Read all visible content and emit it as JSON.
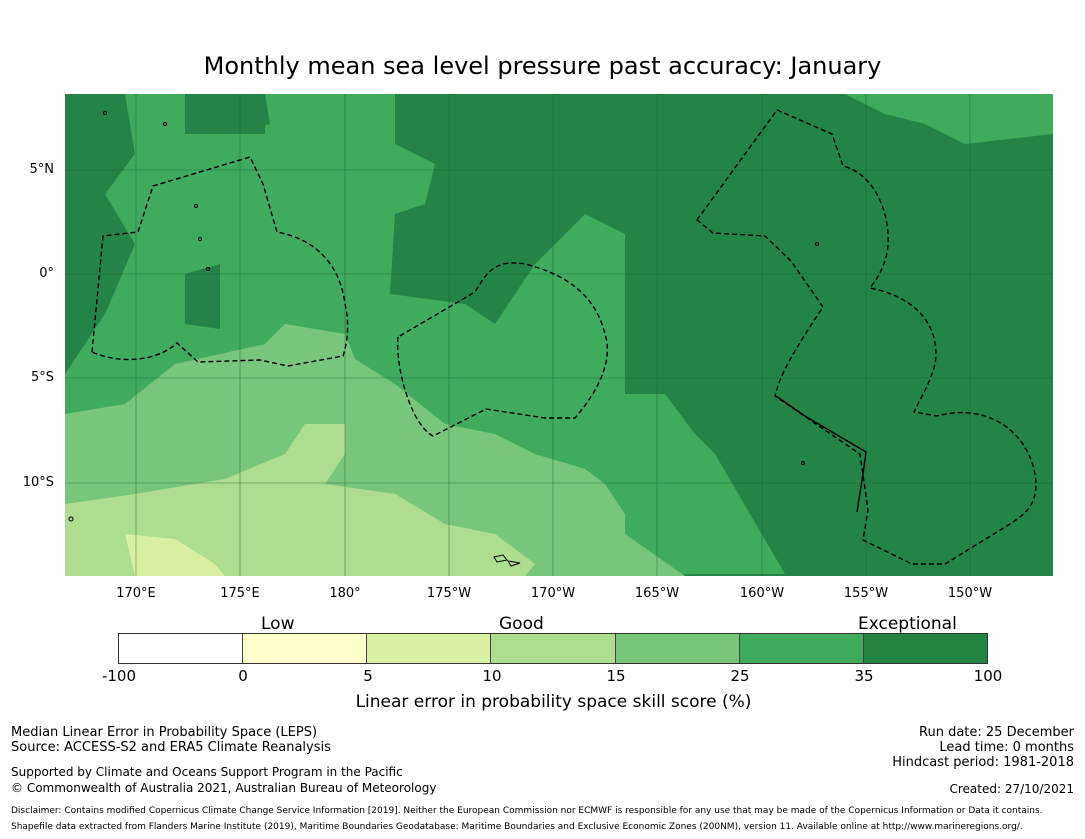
{
  "title": "Monthly mean sea level pressure past accuracy: January",
  "map": {
    "lat_labels": [
      "5°N",
      "0°",
      "5°S",
      "10°S"
    ],
    "lon_labels": [
      "170°E",
      "175°E",
      "180°",
      "175°W",
      "170°W",
      "165°W",
      "160°W",
      "155°W",
      "150°W"
    ],
    "colors": {
      "exceptional_high": "#248447",
      "high": "#40aa5d",
      "medium": "#78c679",
      "low_good": "#addd8e",
      "very_low": "#d9f0a3"
    }
  },
  "colorbar": {
    "categories": [
      "Low",
      "Good",
      "Exceptional"
    ],
    "tick_labels": [
      "-100",
      "0",
      "5",
      "10",
      "15",
      "25",
      "35",
      "100"
    ],
    "colors": [
      "#ffffff",
      "#ffffcc",
      "#d9f0a3",
      "#addd8e",
      "#78c679",
      "#41ab5d",
      "#238443"
    ],
    "label": "Linear error in probability space skill score (%)"
  },
  "footer": {
    "method": "Median Linear Error in Probability Space (LEPS)",
    "source": "Source: ACCESS-S2 and ERA5 Climate Reanalysis",
    "support": "Supported by Climate and Oceans Support Program in the Pacific",
    "copyright": "© Commonwealth of Australia 2021, Australian Bureau of Meteorology",
    "run_date": "Run date: 25 December",
    "lead_time": "Lead time: 0 months",
    "hindcast": "Hindcast period: 1981-2018",
    "created": "Created: 27/10/2021",
    "disclaimer": "Disclaimer: Contains modified Copernicus Climate Change Service Information [2019]. Neither the European Commission nor ECMWF is responsible for any use that may be made of the Copernicus Information or Data it contains.",
    "shapefile": "Shapefile data extracted from Flanders Marine Institute (2019), Maritime Boundaries Geodatabase: Maritime Boundaries and Exclusive Economic Zones (200NM), version 11. Available online at http://www.marineregions.org/."
  }
}
